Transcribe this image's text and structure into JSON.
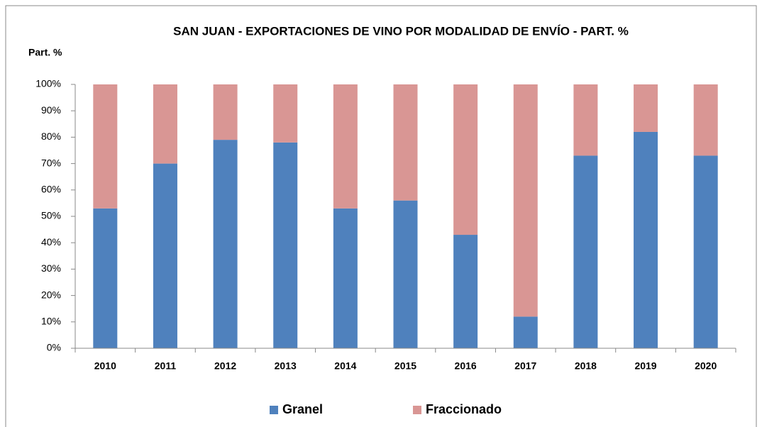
{
  "chart_data": {
    "type": "stacked_bar",
    "title": "SAN JUAN -  EXPORTACIONES DE VINO POR MODALIDAD DE ENVÍO - PART. %",
    "y_axis_label": "Part. %",
    "categories": [
      "2010",
      "2011",
      "2012",
      "2013",
      "2014",
      "2015",
      "2016",
      "2017",
      "2018",
      "2019",
      "2020"
    ],
    "series": [
      {
        "name": "Granel",
        "color": "#4f81bd",
        "values": [
          53,
          70,
          79,
          78,
          53,
          56,
          43,
          12,
          73,
          82,
          73
        ]
      },
      {
        "name": "Fraccionado",
        "color": "#d99694",
        "values": [
          47,
          30,
          21,
          22,
          47,
          44,
          57,
          88,
          27,
          18,
          27
        ]
      }
    ],
    "ylim": [
      0,
      100
    ],
    "yticks": [
      {
        "value": 0,
        "label": "0%"
      },
      {
        "value": 10,
        "label": "10%"
      },
      {
        "value": 20,
        "label": "20%"
      },
      {
        "value": 30,
        "label": "30%"
      },
      {
        "value": 40,
        "label": "40%"
      },
      {
        "value": 50,
        "label": "50%"
      },
      {
        "value": 60,
        "label": "60%"
      },
      {
        "value": 70,
        "label": "70%"
      },
      {
        "value": 80,
        "label": "80%"
      },
      {
        "value": 90,
        "label": "90%"
      },
      {
        "value": 100,
        "label": "100%"
      }
    ],
    "legend": "bottom"
  }
}
